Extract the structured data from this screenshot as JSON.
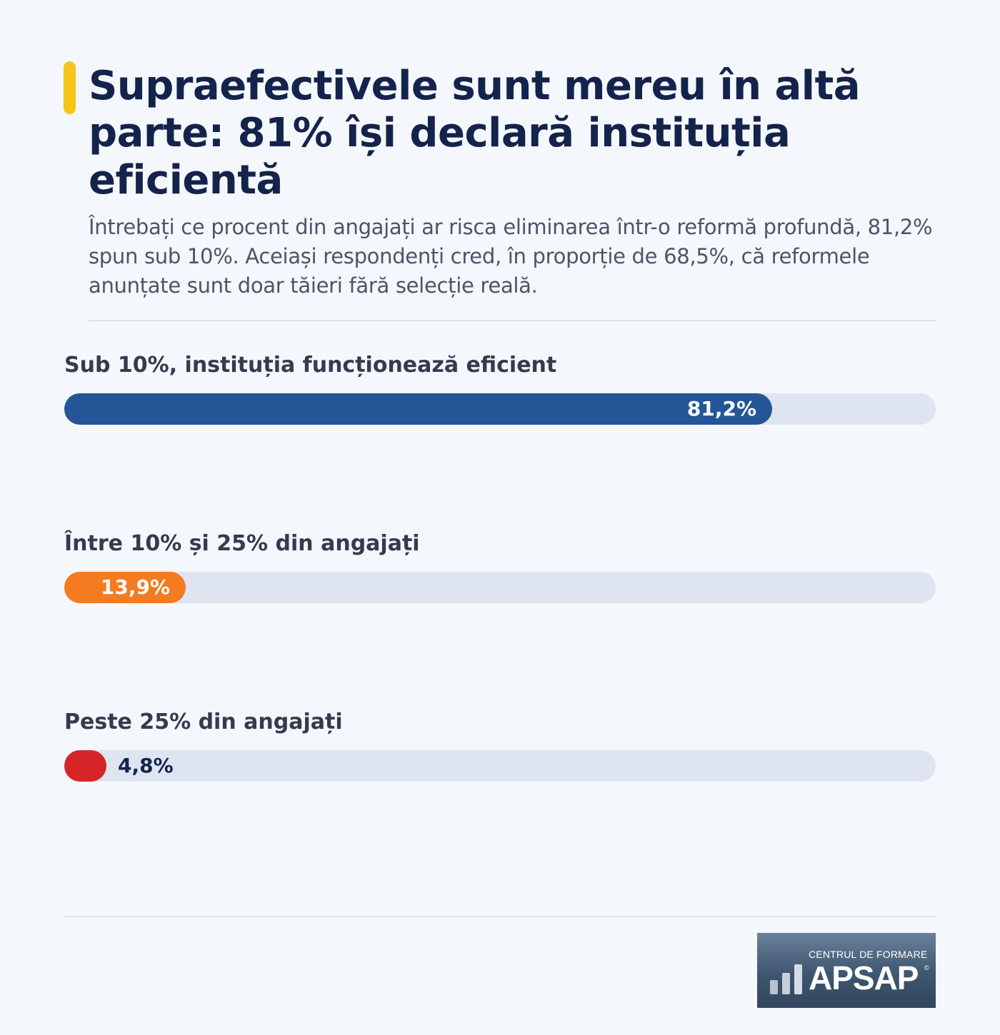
{
  "header": {
    "title": "Supraefectivele sunt mereu în altă parte: 81% își declară instituția eficientă",
    "subtitle": "Întrebați ce procent din angajați ar risca eliminarea într-o reformă profundă, 81,2% spun sub 10%. Aceiași respondenți cred, în proporție de 68,5%, că reformele anunțate sunt doar tăieri fără selecție reală.",
    "accent_color": "#f5c518"
  },
  "chart_data": {
    "type": "bar",
    "orientation": "horizontal",
    "title": "Supraefectivele sunt mereu în altă parte: 81% își declară instituția eficientă",
    "categories": [
      "Sub 10%, instituția funcționează eficient",
      "Între 10% și 25% din angajați",
      "Peste 25% din angajați"
    ],
    "values": [
      81.2,
      13.9,
      4.8
    ],
    "value_labels": [
      "81,2%",
      "13,9%",
      "4,8%"
    ],
    "colors": [
      "#245597",
      "#f47b20",
      "#d62528"
    ],
    "xlim": [
      0,
      100
    ],
    "grid": false,
    "track_color": "#dfe5f0"
  },
  "logo": {
    "small_text": "CENTRUL DE FORMARE",
    "big_text": "APSAP",
    "reg_mark": "©"
  }
}
